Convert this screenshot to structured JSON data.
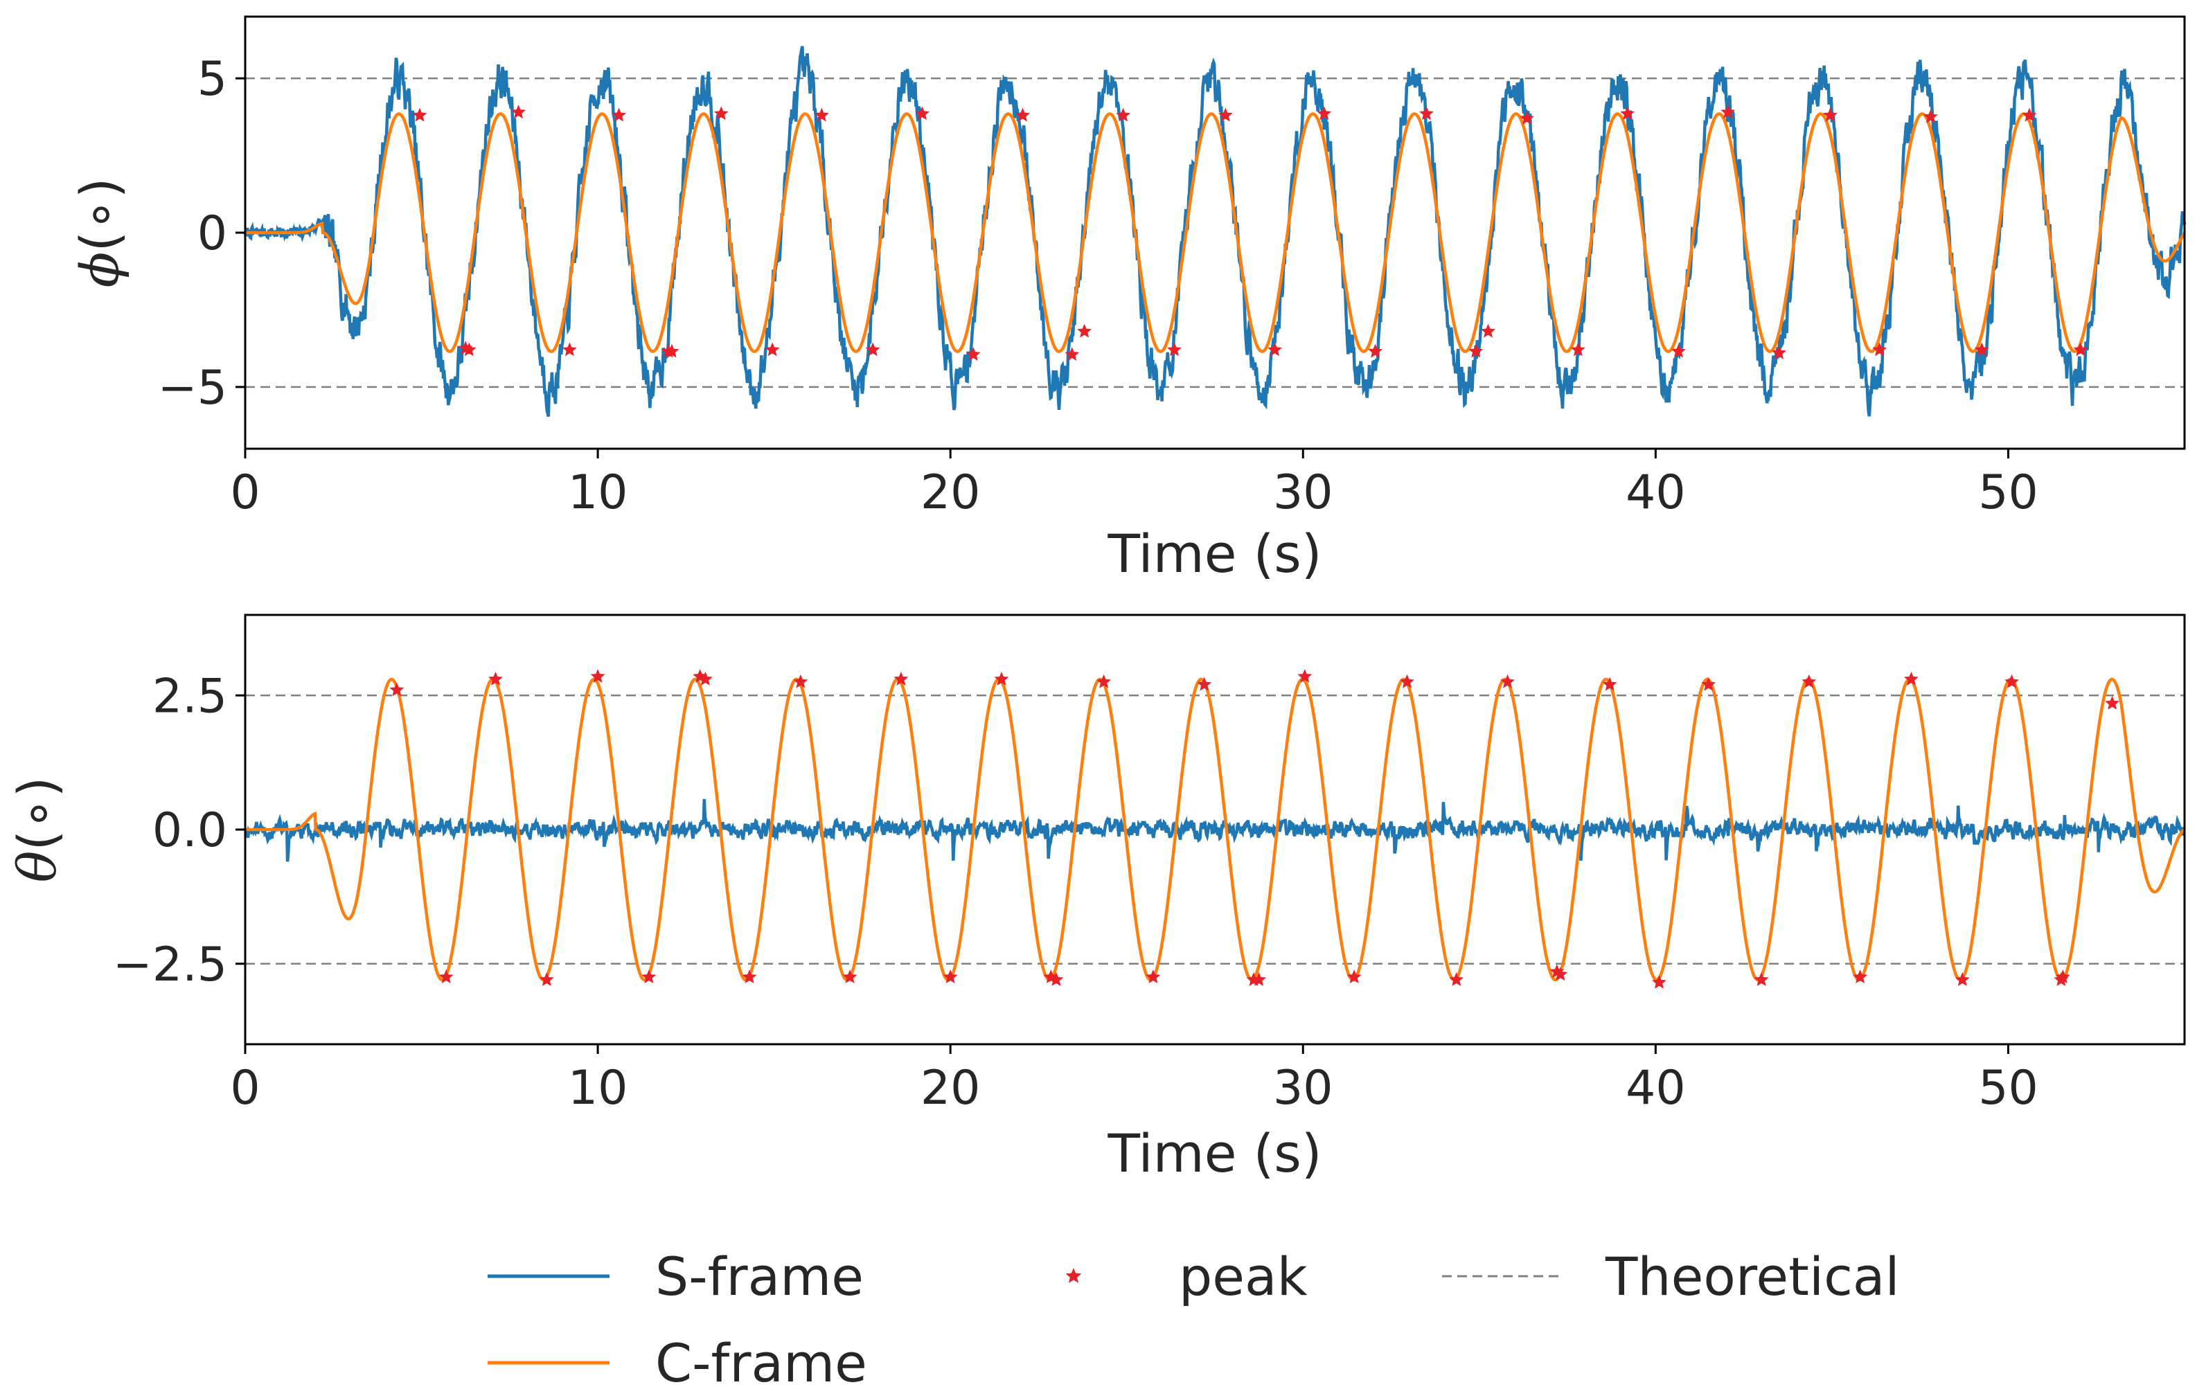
{
  "colors": {
    "s_frame": "#1f77b4",
    "c_frame": "#ff7f0e",
    "peak": "#e8202a",
    "theoretical": "#808080"
  },
  "legend": {
    "s_frame": "S-frame",
    "c_frame": "C-frame",
    "peak": "peak",
    "theoretical": "Theoretical",
    "placement": "lower-center"
  },
  "chart_data": [
    {
      "type": "line",
      "id": "phi",
      "xlabel": "Time (s)",
      "ylabel_symbol": "ϕ",
      "ylabel_unit": "(∘)",
      "xlim": [
        0,
        55
      ],
      "ylim": [
        -7,
        7
      ],
      "xticks": [
        0,
        10,
        20,
        30,
        40,
        50
      ],
      "xtick_labels": [
        "0",
        "10",
        "20",
        "30",
        "40",
        "50"
      ],
      "yticks": [
        -5,
        0,
        5
      ],
      "ytick_labels": [
        "−5",
        "0",
        "5"
      ],
      "theoretical": [
        5,
        -5
      ],
      "series": {
        "s_frame": {
          "start": 2.2,
          "period": 2.88,
          "amplitude": 5.0,
          "noise": 0.55,
          "seed": 7
        },
        "c_frame": {
          "start": 2.2,
          "period": 2.88,
          "amplitude": 3.85
        }
      },
      "peaks": {
        "x": [
          4.95,
          7.75,
          10.6,
          13.5,
          16.35,
          19.2,
          22.05,
          24.9,
          27.8,
          30.6,
          33.5,
          36.35,
          39.2,
          42.05,
          44.95,
          47.8,
          50.6,
          6.35,
          9.2,
          12.1,
          14.95,
          17.8,
          20.65,
          23.45,
          26.35,
          29.2,
          32.05,
          34.9,
          37.8,
          40.65,
          43.5,
          46.35,
          49.25,
          52.05,
          6.25,
          12.0,
          23.8,
          35.25
        ],
        "y": [
          3.8,
          3.9,
          3.8,
          3.85,
          3.8,
          3.85,
          3.8,
          3.8,
          3.8,
          3.85,
          3.85,
          3.7,
          3.85,
          3.9,
          3.8,
          3.75,
          3.8,
          -3.8,
          -3.8,
          -3.85,
          -3.8,
          -3.8,
          -3.95,
          -3.95,
          -3.8,
          -3.8,
          -3.85,
          -3.85,
          -3.8,
          -3.85,
          -3.9,
          -3.8,
          -3.8,
          -3.8,
          -3.75,
          -3.85,
          -3.2,
          -3.2
        ]
      }
    },
    {
      "type": "line",
      "id": "theta",
      "xlabel": "Time (s)",
      "ylabel_symbol": "θ",
      "ylabel_unit": "(∘)",
      "xlim": [
        0,
        55
      ],
      "ylim": [
        -4,
        4
      ],
      "xticks": [
        0,
        10,
        20,
        30,
        40,
        50
      ],
      "xtick_labels": [
        "0",
        "10",
        "20",
        "30",
        "40",
        "50"
      ],
      "yticks": [
        -2.5,
        0.0,
        2.5
      ],
      "ytick_labels": [
        "−2.5",
        "0.0",
        "2.5"
      ],
      "theoretical": [
        2.5,
        -2.5
      ],
      "series": {
        "s_frame": {
          "start": 0,
          "amplitude": 0,
          "noise": 0.12,
          "seed": 11
        },
        "c_frame": {
          "start": 2.0,
          "period": 2.87,
          "amplitude": 2.8
        }
      },
      "peaks": {
        "x": [
          4.3,
          7.1,
          10.0,
          12.9,
          13.05,
          15.75,
          18.6,
          21.45,
          24.35,
          27.2,
          30.05,
          32.95,
          35.8,
          38.7,
          41.5,
          44.35,
          47.25,
          50.1,
          52.95,
          5.7,
          8.55,
          11.45,
          14.3,
          17.15,
          20.0,
          22.85,
          23.0,
          25.75,
          28.6,
          28.75,
          31.45,
          34.35,
          37.2,
          37.3,
          40.1,
          43.0,
          45.8,
          48.7,
          51.5,
          51.55
        ],
        "y": [
          2.6,
          2.8,
          2.85,
          2.85,
          2.8,
          2.75,
          2.8,
          2.8,
          2.75,
          2.7,
          2.85,
          2.75,
          2.75,
          2.7,
          2.7,
          2.75,
          2.8,
          2.75,
          2.35,
          -2.75,
          -2.8,
          -2.75,
          -2.75,
          -2.75,
          -2.75,
          -2.75,
          -2.8,
          -2.75,
          -2.8,
          -2.8,
          -2.75,
          -2.8,
          -2.65,
          -2.7,
          -2.85,
          -2.8,
          -2.75,
          -2.8,
          -2.8,
          -2.75
        ]
      }
    }
  ]
}
